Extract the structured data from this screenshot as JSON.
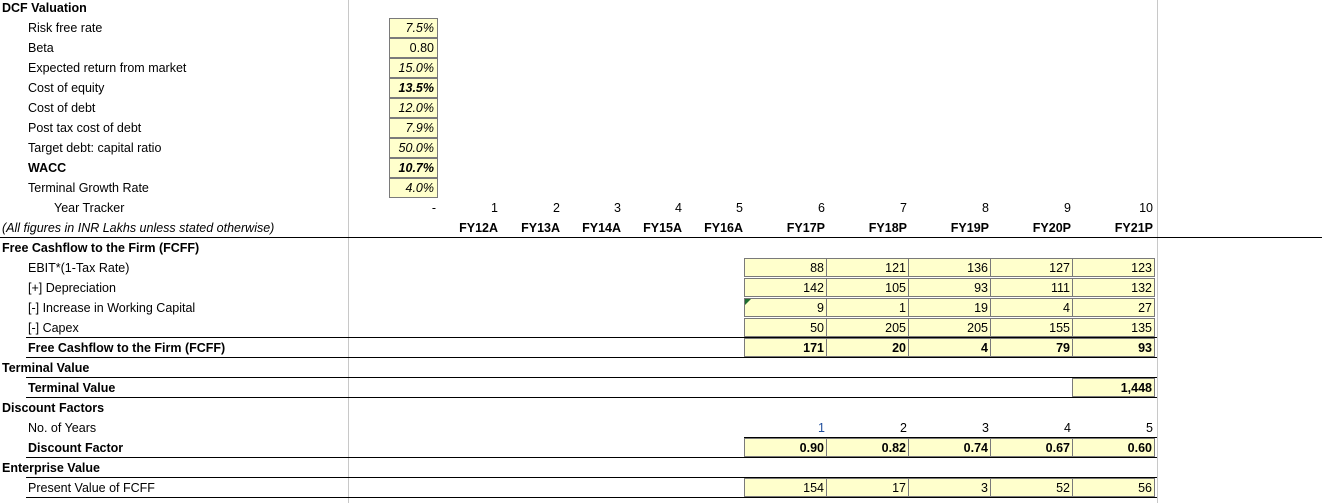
{
  "sheet": {
    "title": "DCF Valuation",
    "assumptions": [
      {
        "label": "Risk free rate",
        "value": "7.5%",
        "bold": false
      },
      {
        "label": "Beta",
        "value": "0.80",
        "bold": false
      },
      {
        "label": "Expected return from market",
        "value": "15.0%",
        "bold": false
      },
      {
        "label": "Cost of equity",
        "value": "13.5%",
        "bold": false
      },
      {
        "label": "Cost of debt",
        "value": "12.0%",
        "bold": false
      },
      {
        "label": "Post tax cost of debt",
        "value": "7.9%",
        "bold": false
      },
      {
        "label": "Target debt: capital ratio",
        "value": "50.0%",
        "bold": false
      },
      {
        "label": "WACC",
        "value": "10.7%",
        "bold": true
      },
      {
        "label": "Terminal Growth Rate",
        "value": "4.0%",
        "bold": false
      }
    ],
    "year_tracker": {
      "label": "Year Tracker",
      "dash": "-",
      "values": [
        "1",
        "2",
        "3",
        "4",
        "5",
        "6",
        "7",
        "8",
        "9",
        "10"
      ]
    },
    "note": "(All figures in INR Lakhs unless stated otherwise)",
    "years": [
      "FY12A",
      "FY13A",
      "FY14A",
      "FY15A",
      "FY16A",
      "FY17P",
      "FY18P",
      "FY19P",
      "FY20P",
      "FY21P"
    ],
    "fcff": {
      "header": "Free Cashflow to the Firm (FCFF)",
      "rows": [
        {
          "label": "EBIT*(1-Tax Rate)",
          "values": [
            "88",
            "121",
            "136",
            "127",
            "123"
          ]
        },
        {
          "label": "[+] Depreciation",
          "values": [
            "142",
            "105",
            "93",
            "111",
            "132"
          ]
        },
        {
          "label": "[-] Increase in Working Capital",
          "values": [
            "9",
            "1",
            "19",
            "4",
            "27"
          ]
        },
        {
          "label": "[-] Capex",
          "values": [
            "50",
            "205",
            "205",
            "155",
            "135"
          ]
        }
      ],
      "total": {
        "label": "Free Cashflow to the Firm (FCFF)",
        "values": [
          "171",
          "20",
          "4",
          "79",
          "93"
        ]
      }
    },
    "terminal": {
      "header": "Terminal Value",
      "label": "Terminal Value",
      "value": "1,448"
    },
    "discount": {
      "header": "Discount Factors",
      "years_label": "No. of Years",
      "years": [
        "1",
        "2",
        "3",
        "4",
        "5"
      ],
      "factor_label": "Discount Factor",
      "factors": [
        "0.90",
        "0.82",
        "0.74",
        "0.67",
        "0.60"
      ]
    },
    "enterprise": {
      "header": "Enterprise Value",
      "pv_label": "Present Value of FCFF",
      "pv": [
        "154",
        "17",
        "3",
        "52",
        "56"
      ]
    },
    "colors": {
      "input_fill": "#ffffcc",
      "grid_line": "#c8c8c8",
      "blue_text": "#1f4e9c"
    }
  }
}
